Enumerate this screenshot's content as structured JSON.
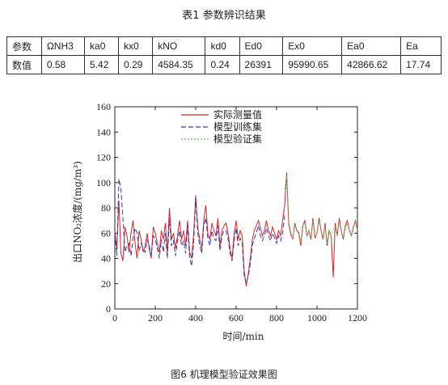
{
  "table": {
    "title": "表1 参数辨识结果",
    "header": [
      "参数",
      "ΩNH3",
      "ka0",
      "kx0",
      "kNO",
      "kd0",
      "Ed0",
      "Ex0",
      "Ea0",
      "Ea"
    ],
    "row": [
      "数值",
      "0.58",
      "5.42",
      "0.29",
      "4584.35",
      "0.24",
      "26391",
      "95990.65",
      "42866.62",
      "17.74"
    ]
  },
  "figure": {
    "caption": "图6 机理模型验证效果图"
  },
  "chart_data": {
    "type": "line",
    "xlabel": "时间/min",
    "ylabel": "出口NO₂浓度/(mg/m³)",
    "xlim": [
      0,
      1200
    ],
    "ylim": [
      0,
      160
    ],
    "xticks": [
      0,
      200,
      400,
      600,
      800,
      1000,
      1200
    ],
    "yticks": [
      0,
      20,
      40,
      60,
      80,
      100,
      120,
      140,
      160
    ],
    "legend_position": "top-center",
    "series": [
      {
        "name": "实际测量值",
        "color": "#d8232a",
        "dash": "solid",
        "x": [
          0,
          10,
          20,
          30,
          40,
          50,
          60,
          70,
          80,
          90,
          100,
          110,
          120,
          130,
          140,
          150,
          160,
          170,
          180,
          190,
          200,
          210,
          220,
          230,
          240,
          250,
          260,
          270,
          280,
          290,
          300,
          310,
          320,
          330,
          340,
          350,
          360,
          370,
          380,
          390,
          400,
          410,
          420,
          430,
          440,
          450,
          460,
          470,
          480,
          490,
          500,
          510,
          520,
          530,
          540,
          550,
          560,
          570,
          580,
          590,
          600,
          610,
          620,
          630,
          640,
          650,
          660,
          670,
          680,
          690,
          700,
          710,
          720,
          730,
          740,
          750,
          760,
          770,
          780,
          790,
          800,
          810,
          820,
          830,
          840,
          850,
          860,
          870,
          880,
          890,
          900,
          910,
          920,
          930,
          940,
          950,
          960,
          970,
          980,
          990,
          1000,
          1010,
          1020,
          1030,
          1040,
          1050,
          1060,
          1070,
          1080,
          1090,
          1100,
          1110,
          1120,
          1130,
          1140,
          1150,
          1160,
          1170,
          1180,
          1190,
          1200
        ],
        "y": [
          62,
          48,
          86,
          44,
          38,
          65,
          58,
          45,
          60,
          70,
          52,
          40,
          62,
          55,
          45,
          50,
          60,
          48,
          40,
          65,
          60,
          52,
          45,
          62,
          55,
          68,
          45,
          80,
          55,
          60,
          48,
          58,
          70,
          55,
          62,
          50,
          70,
          45,
          40,
          60,
          90,
          65,
          55,
          48,
          70,
          82,
          60,
          55,
          68,
          62,
          58,
          72,
          50,
          62,
          66,
          68,
          60,
          48,
          40,
          60,
          70,
          55,
          62,
          58,
          30,
          18,
          28,
          40,
          55,
          62,
          66,
          70,
          64,
          58,
          62,
          70,
          62,
          58,
          65,
          60,
          55,
          62,
          58,
          70,
          82,
          108,
          68,
          60,
          55,
          68,
          62,
          60,
          50,
          66,
          70,
          58,
          62,
          55,
          72,
          56,
          60,
          72,
          62,
          55,
          68,
          50,
          62,
          58,
          25,
          68,
          58,
          72,
          62,
          55,
          66,
          70,
          62,
          58,
          65,
          70,
          62
        ]
      },
      {
        "name": "模型训练集",
        "color": "#3a3a9e",
        "dash": "6,3",
        "x": [
          0,
          10,
          20,
          30,
          40,
          50,
          60,
          70,
          80,
          90,
          100,
          110,
          120,
          130,
          140,
          150,
          160,
          170,
          180,
          190,
          200,
          210,
          220,
          230,
          240,
          250,
          260,
          270,
          280,
          290,
          300,
          310,
          320,
          330,
          340,
          350,
          360,
          370,
          380,
          390,
          400,
          410,
          420,
          430,
          440,
          450,
          460,
          470,
          480,
          490,
          500,
          510,
          520,
          530,
          540,
          550,
          560,
          570,
          580,
          590,
          600,
          610,
          620,
          630,
          640,
          650,
          660,
          670,
          680,
          690,
          700,
          710,
          720,
          730,
          740,
          750,
          760,
          770,
          780,
          790,
          800,
          810,
          820,
          830,
          840
        ],
        "y": [
          60,
          42,
          103,
          95,
          72,
          45,
          50,
          52,
          42,
          56,
          64,
          60,
          46,
          52,
          48,
          45,
          55,
          50,
          42,
          58,
          55,
          48,
          40,
          55,
          45,
          60,
          40,
          72,
          50,
          54,
          42,
          54,
          62,
          50,
          54,
          44,
          66,
          40,
          34,
          52,
          88,
          60,
          50,
          44,
          66,
          72,
          56,
          50,
          62,
          56,
          54,
          66,
          46,
          58,
          62,
          62,
          56,
          44,
          38,
          54,
          64,
          50,
          56,
          52,
          26,
          20,
          26,
          36,
          50,
          56,
          60,
          66,
          58,
          54,
          58,
          64,
          58,
          54,
          60,
          56,
          52,
          58,
          54,
          60,
          75
        ]
      },
      {
        "name": "模型验证集",
        "color": "#5bbf5b",
        "dash": "2,2",
        "x": [
          840,
          850,
          860,
          870,
          880,
          890,
          900,
          910,
          920,
          930,
          940,
          950,
          960,
          970,
          980,
          990,
          1000,
          1010,
          1020,
          1030,
          1040,
          1050,
          1060,
          1070,
          1080,
          1090,
          1100,
          1110,
          1120,
          1130,
          1140,
          1150,
          1160,
          1170,
          1180,
          1190,
          1200
        ],
        "y": [
          95,
          105,
          66,
          58,
          56,
          66,
          62,
          62,
          52,
          66,
          68,
          58,
          62,
          56,
          70,
          58,
          60,
          70,
          62,
          56,
          66,
          52,
          62,
          58,
          62,
          66,
          58,
          70,
          62,
          56,
          64,
          68,
          62,
          58,
          64,
          70,
          62
        ]
      }
    ]
  }
}
